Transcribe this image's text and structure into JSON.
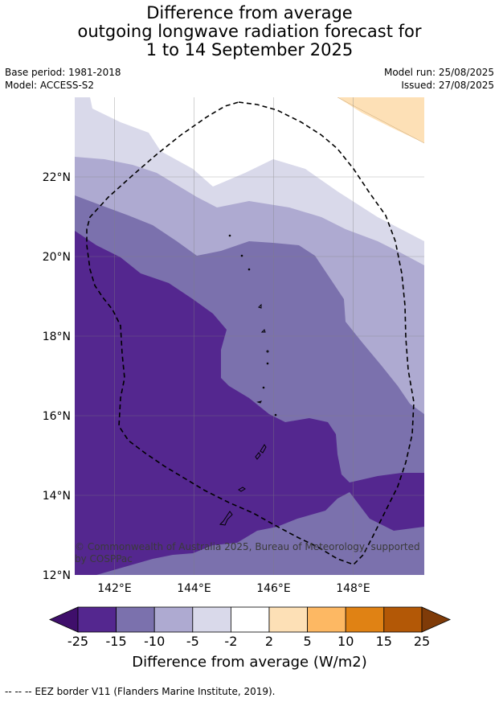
{
  "title": {
    "line1": "Difference from average",
    "line2": "outgoing longwave radiation forecast for",
    "line3": "1 to 14 September 2025"
  },
  "meta": {
    "base_period": "Base period: 1981-2018",
    "model": "Model: ACCESS-S2",
    "model_run": "Model run: 25/08/2025",
    "issued": "Issued: 27/08/2025"
  },
  "map": {
    "copyright_line1": "© Commonwealth of Australia 2025, Bureau of Meteorology, supported",
    "copyright_line2": "by COSPPac",
    "lat_labels": [
      "22°N",
      "20°N",
      "18°N",
      "16°N",
      "14°N",
      "12°N"
    ],
    "lon_labels": [
      "142°E",
      "144°E",
      "146°E",
      "148°E"
    ],
    "lat_range": [
      12,
      24
    ],
    "lon_range": [
      141,
      149.8
    ]
  },
  "colorbar": {
    "ticks": [
      "-25",
      "-15",
      "-10",
      "-5",
      "-2",
      "2",
      "5",
      "10",
      "15",
      "25"
    ],
    "colors": [
      "#3f0f6b",
      "#54278f",
      "#7b71ad",
      "#aeaad1",
      "#d9d9ea",
      "#ffffff",
      "#fde0b6",
      "#fdb863",
      "#e08214",
      "#b35806",
      "#7f3b08"
    ],
    "units": "Difference from average (W/m2)"
  },
  "footnote": "--  --  -- EEZ border V11 (Flanders Marine Institute, 2019)."
}
